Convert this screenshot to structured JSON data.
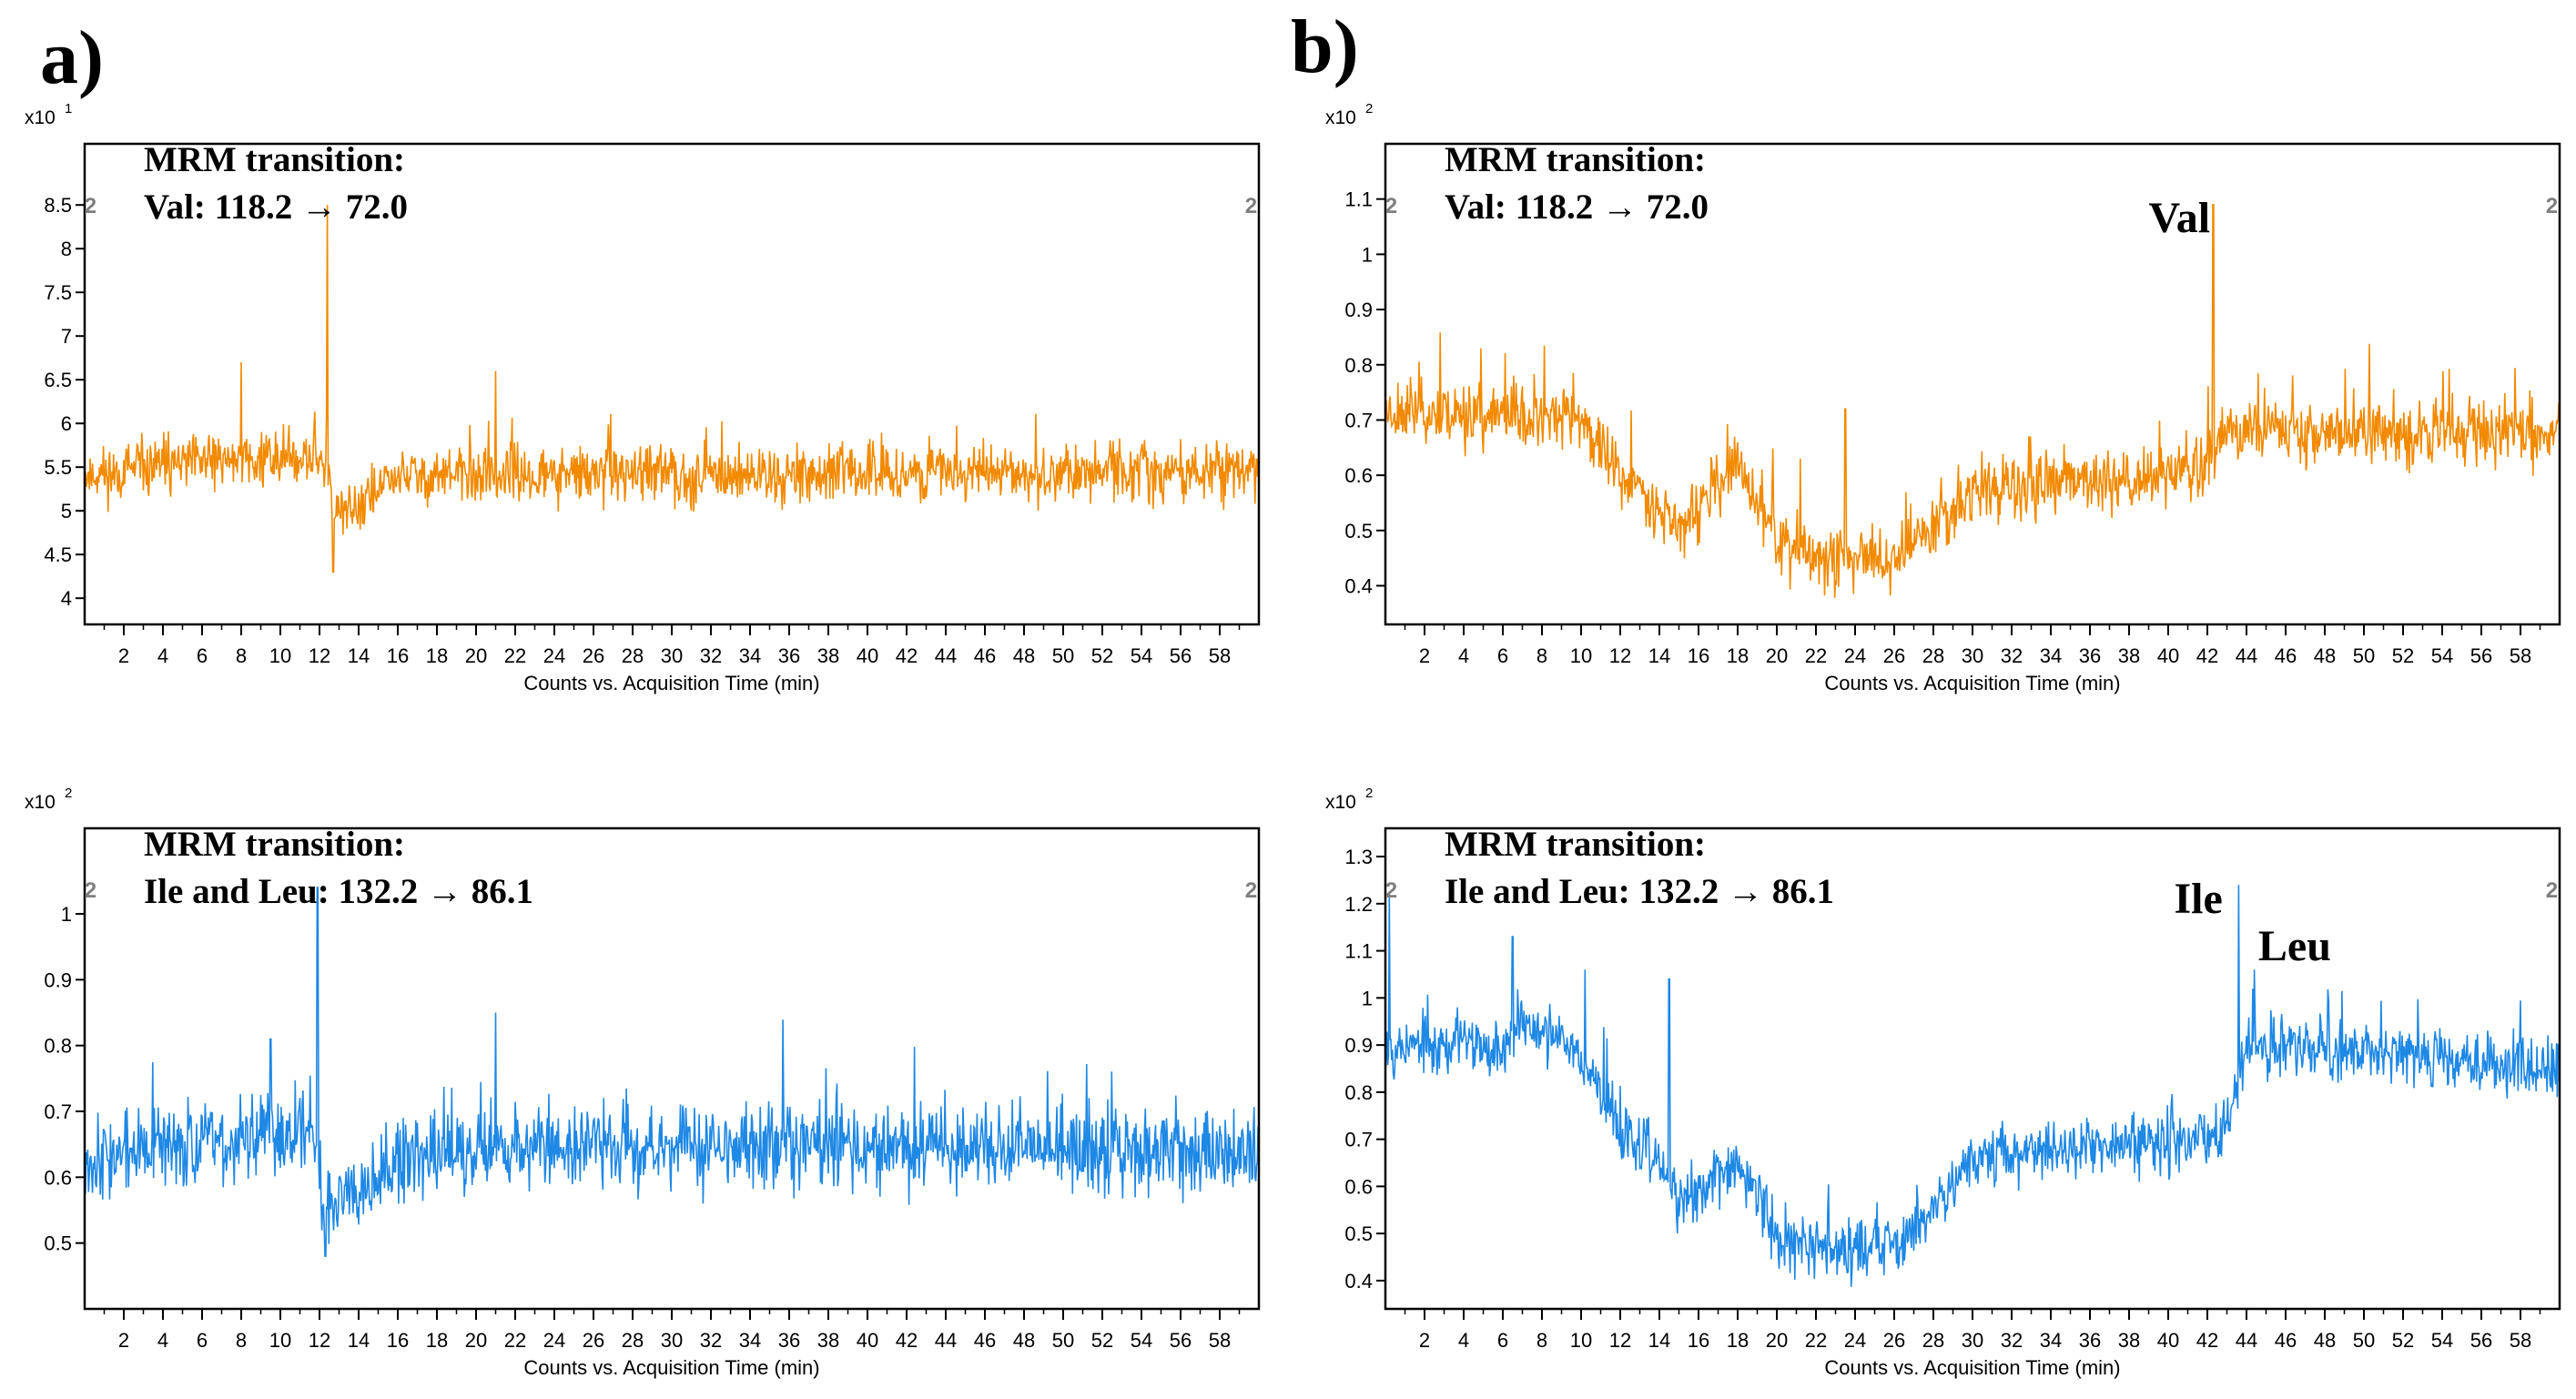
{
  "panel_labels": {
    "a": "a)",
    "b": "b)"
  },
  "colors": {
    "orange": "#f28a00",
    "blue": "#1e88e5",
    "axis": "#000000",
    "marker": "#7f7f7f"
  },
  "chart_data": [
    {
      "id": "a-top",
      "type": "line",
      "series_color": "orange",
      "title": "MRM transition:",
      "subtitle": "Val: 118.2 → 72.0",
      "scale_label": "x10",
      "scale_exp": "1",
      "xlabel": "Counts vs. Acquisition Time (min)",
      "xlim": [
        0,
        60
      ],
      "xticks": [
        2,
        4,
        6,
        8,
        10,
        12,
        14,
        16,
        18,
        20,
        22,
        24,
        26,
        28,
        30,
        32,
        34,
        36,
        38,
        40,
        42,
        44,
        46,
        48,
        50,
        52,
        54,
        56,
        58
      ],
      "ylim": [
        3.7,
        9.2
      ],
      "yticks": [
        4,
        4.5,
        5,
        5.5,
        6,
        6.5,
        7,
        7.5,
        8,
        8.5
      ],
      "ytick_labels": [
        "4",
        "4.5",
        "5",
        "5.5",
        "6",
        "6.5",
        "7",
        "7.5",
        "8",
        "8.5"
      ],
      "markers": [
        {
          "x": 0.3,
          "label": "2"
        },
        {
          "x": 59.6,
          "label": "2"
        }
      ],
      "annotations": [],
      "baseline_profile": [
        [
          0,
          5.4
        ],
        [
          8,
          5.6
        ],
        [
          12.4,
          5.6
        ],
        [
          12.8,
          4.9
        ],
        [
          16,
          5.4
        ],
        [
          60,
          5.45
        ]
      ],
      "noise": 0.28,
      "spikes": [
        {
          "x": 12.4,
          "y": 8.5
        },
        {
          "x": 8.0,
          "y": 6.7
        },
        {
          "x": 21,
          "y": 6.6
        },
        {
          "x": 12.7,
          "y": 4.3
        }
      ],
      "seed": 11
    },
    {
      "id": "b-top",
      "type": "line",
      "series_color": "orange",
      "title": "MRM transition:",
      "subtitle": "Val: 118.2 → 72.0",
      "scale_label": "x10",
      "scale_exp": "2",
      "xlabel": "Counts vs. Acquisition Time (min)",
      "xlim": [
        0,
        60
      ],
      "xticks": [
        2,
        4,
        6,
        8,
        10,
        12,
        14,
        16,
        18,
        20,
        22,
        24,
        26,
        28,
        30,
        32,
        34,
        36,
        38,
        40,
        42,
        44,
        46,
        48,
        50,
        52,
        54,
        56,
        58
      ],
      "ylim": [
        0.33,
        1.2
      ],
      "yticks": [
        0.4,
        0.5,
        0.6,
        0.7,
        0.8,
        0.9,
        1,
        1.1
      ],
      "ytick_labels": [
        "0.4",
        "0.5",
        "0.6",
        "0.7",
        "0.8",
        "0.9",
        "1",
        "1.1"
      ],
      "markers": [
        {
          "x": 0.3,
          "label": "2"
        },
        {
          "x": 59.6,
          "label": "2"
        }
      ],
      "annotations": [
        {
          "x": 39.0,
          "y": 1.04,
          "label": "Val"
        }
      ],
      "baseline_profile": [
        [
          0,
          0.72
        ],
        [
          10,
          0.7
        ],
        [
          12,
          0.6
        ],
        [
          14,
          0.55
        ],
        [
          15,
          0.5
        ],
        [
          18,
          0.62
        ],
        [
          20,
          0.48
        ],
        [
          22,
          0.45
        ],
        [
          26,
          0.45
        ],
        [
          30,
          0.57
        ],
        [
          40,
          0.6
        ],
        [
          42,
          0.62
        ],
        [
          43,
          0.68
        ],
        [
          60,
          0.68
        ]
      ],
      "noise": 0.05,
      "spikes": [
        {
          "x": 42.3,
          "y": 1.09
        },
        {
          "x": 23.5,
          "y": 0.72
        },
        {
          "x": 21.2,
          "y": 0.63
        }
      ],
      "seed": 23
    },
    {
      "id": "a-bottom",
      "type": "line",
      "series_color": "blue",
      "title": "MRM transition:",
      "subtitle": "Ile and Leu: 132.2 → 86.1",
      "scale_label": "x10",
      "scale_exp": "2",
      "xlabel": "Counts vs. Acquisition Time (min)",
      "xlim": [
        0,
        60
      ],
      "xticks": [
        2,
        4,
        6,
        8,
        10,
        12,
        14,
        16,
        18,
        20,
        22,
        24,
        26,
        28,
        30,
        32,
        34,
        36,
        38,
        40,
        42,
        44,
        46,
        48,
        50,
        52,
        54,
        56,
        58
      ],
      "ylim": [
        0.4,
        1.13
      ],
      "yticks": [
        0.5,
        0.6,
        0.7,
        0.8,
        0.9,
        1
      ],
      "ytick_labels": [
        "0.5",
        "0.6",
        "0.7",
        "0.8",
        "0.9",
        "1"
      ],
      "markers": [
        {
          "x": 0.3,
          "label": "2"
        },
        {
          "x": 59.6,
          "label": "2"
        }
      ],
      "annotations": [],
      "baseline_profile": [
        [
          0,
          0.63
        ],
        [
          11.8,
          0.67
        ],
        [
          12.2,
          0.55
        ],
        [
          14,
          0.6
        ],
        [
          20,
          0.65
        ],
        [
          60,
          0.64
        ]
      ],
      "noise": 0.055,
      "spikes": [
        {
          "x": 11.9,
          "y": 1.04
        },
        {
          "x": 21,
          "y": 0.85
        },
        {
          "x": 9.5,
          "y": 0.81
        },
        {
          "x": 12.3,
          "y": 0.48
        }
      ],
      "seed": 37
    },
    {
      "id": "b-bottom",
      "type": "line",
      "series_color": "blue",
      "title": "MRM transition:",
      "subtitle": "Ile and Leu: 132.2 → 86.1",
      "scale_label": "x10",
      "scale_exp": "2",
      "xlabel": "Counts vs. Acquisition Time (min)",
      "xlim": [
        0,
        60
      ],
      "xticks": [
        2,
        4,
        6,
        8,
        10,
        12,
        14,
        16,
        18,
        20,
        22,
        24,
        26,
        28,
        30,
        32,
        34,
        36,
        38,
        40,
        42,
        44,
        46,
        48,
        50,
        52,
        54,
        56,
        58
      ],
      "ylim": [
        0.34,
        1.36
      ],
      "yticks": [
        0.4,
        0.5,
        0.6,
        0.7,
        0.8,
        0.9,
        1,
        1.1,
        1.2,
        1.3
      ],
      "ytick_labels": [
        "0.4",
        "0.5",
        "0.6",
        "0.7",
        "0.8",
        "0.9",
        "1",
        "1.1",
        "1.2",
        "1.3"
      ],
      "markers": [
        {
          "x": 0.3,
          "label": "2"
        },
        {
          "x": 59.6,
          "label": "2"
        }
      ],
      "annotations": [
        {
          "x": 40.3,
          "y": 1.18,
          "label": "Ile"
        },
        {
          "x": 44.6,
          "y": 1.08,
          "label": "Leu"
        }
      ],
      "baseline_profile": [
        [
          0,
          0.9
        ],
        [
          6,
          0.9
        ],
        [
          7,
          0.95
        ],
        [
          10,
          0.88
        ],
        [
          12,
          0.72
        ],
        [
          14,
          0.65
        ],
        [
          15,
          0.56
        ],
        [
          18,
          0.65
        ],
        [
          20,
          0.5
        ],
        [
          22,
          0.47
        ],
        [
          26,
          0.47
        ],
        [
          30,
          0.66
        ],
        [
          40,
          0.7
        ],
        [
          43,
          0.72
        ],
        [
          44,
          0.9
        ],
        [
          60,
          0.85
        ]
      ],
      "noise": 0.055,
      "spikes": [
        {
          "x": 43.6,
          "y": 1.24
        },
        {
          "x": 44.4,
          "y": 1.06
        },
        {
          "x": 14.5,
          "y": 1.04
        },
        {
          "x": 0.2,
          "y": 1.22
        },
        {
          "x": 6.5,
          "y": 1.13
        },
        {
          "x": 10.2,
          "y": 1.06
        }
      ],
      "seed": 53
    }
  ]
}
